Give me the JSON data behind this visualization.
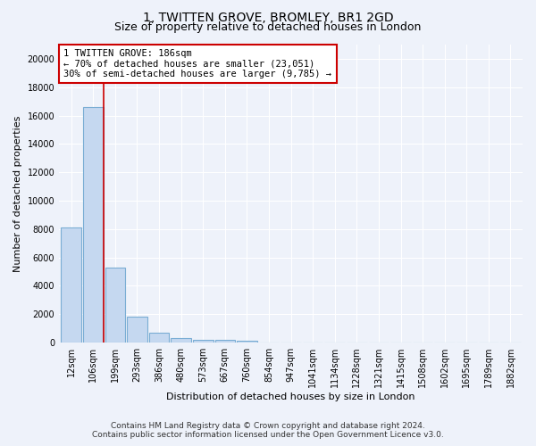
{
  "title_line1": "1, TWITTEN GROVE, BROMLEY, BR1 2GD",
  "title_line2": "Size of property relative to detached houses in London",
  "xlabel": "Distribution of detached houses by size in London",
  "ylabel": "Number of detached properties",
  "categories": [
    "12sqm",
    "106sqm",
    "199sqm",
    "293sqm",
    "386sqm",
    "480sqm",
    "573sqm",
    "667sqm",
    "760sqm",
    "854sqm",
    "947sqm",
    "1041sqm",
    "1134sqm",
    "1228sqm",
    "1321sqm",
    "1415sqm",
    "1508sqm",
    "1602sqm",
    "1695sqm",
    "1789sqm",
    "1882sqm"
  ],
  "values": [
    8100,
    16600,
    5300,
    1800,
    680,
    350,
    220,
    170,
    130,
    0,
    0,
    0,
    0,
    0,
    0,
    0,
    0,
    0,
    0,
    0,
    0
  ],
  "bar_color": "#c5d8f0",
  "bar_edge_color": "#7aadd4",
  "vline_color": "#cc0000",
  "annotation_text": "1 TWITTEN GROVE: 186sqm\n← 70% of detached houses are smaller (23,051)\n30% of semi-detached houses are larger (9,785) →",
  "annotation_box_color": "#cc0000",
  "ylim": [
    0,
    21000
  ],
  "yticks": [
    0,
    2000,
    4000,
    6000,
    8000,
    10000,
    12000,
    14000,
    16000,
    18000,
    20000
  ],
  "footer_line1": "Contains HM Land Registry data © Crown copyright and database right 2024.",
  "footer_line2": "Contains public sector information licensed under the Open Government Licence v3.0.",
  "bg_color": "#eef2fa",
  "plot_bg_color": "#eef2fa",
  "grid_color": "#ffffff",
  "title1_fontsize": 10,
  "title2_fontsize": 9,
  "axis_label_fontsize": 8,
  "tick_fontsize": 7,
  "annotation_fontsize": 7.5,
  "footer_fontsize": 6.5
}
